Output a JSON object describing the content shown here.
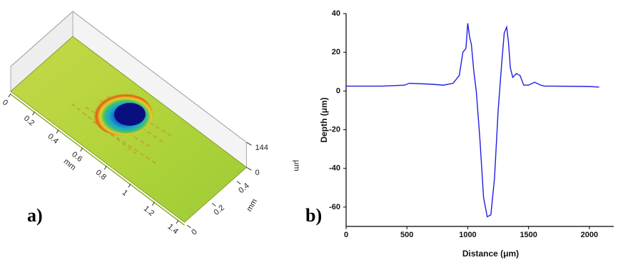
{
  "chart_data": [
    {
      "type": "surface",
      "label": "a)",
      "xlabel": "mm",
      "ylabel": "mm",
      "zlabel": "μm",
      "xlim": [
        0,
        1.45
      ],
      "xticks": [
        0,
        0.2,
        0.4,
        0.6,
        0.8,
        1,
        1.2,
        1.4
      ],
      "ylim": [
        0,
        0.5
      ],
      "yticks": [
        0,
        0.2,
        0.4
      ],
      "zlim": [
        0,
        144
      ],
      "zticks": [
        0,
        144
      ]
    },
    {
      "type": "line",
      "label": "b)",
      "xlabel": "Distance (μm)",
      "ylabel": "Depth (μm)",
      "xlim": [
        0,
        2200
      ],
      "xticks": [
        0,
        500,
        1000,
        1500,
        2000
      ],
      "ylim": [
        -70,
        40
      ],
      "yticks": [
        -60,
        -40,
        -20,
        0,
        20,
        40
      ],
      "series": [
        {
          "color": "#1f1fe0",
          "x": [
            0,
            300,
            480,
            520,
            700,
            800,
            880,
            930,
            960,
            985,
            1000,
            1015,
            1030,
            1050,
            1070,
            1100,
            1130,
            1160,
            1190,
            1220,
            1250,
            1280,
            1300,
            1320,
            1335,
            1350,
            1370,
            1400,
            1430,
            1460,
            1500,
            1550,
            1600,
            1630,
            1700,
            2000,
            2080
          ],
          "values": [
            2.5,
            2.5,
            3,
            4,
            3.5,
            3,
            4,
            8,
            20,
            22,
            35,
            28,
            24,
            10,
            0,
            -25,
            -55,
            -65,
            -64,
            -45,
            -10,
            15,
            30,
            33,
            25,
            12,
            7,
            9,
            8,
            3,
            3,
            4.5,
            3,
            2.5,
            2.5,
            2.3,
            2
          ]
        }
      ]
    }
  ]
}
